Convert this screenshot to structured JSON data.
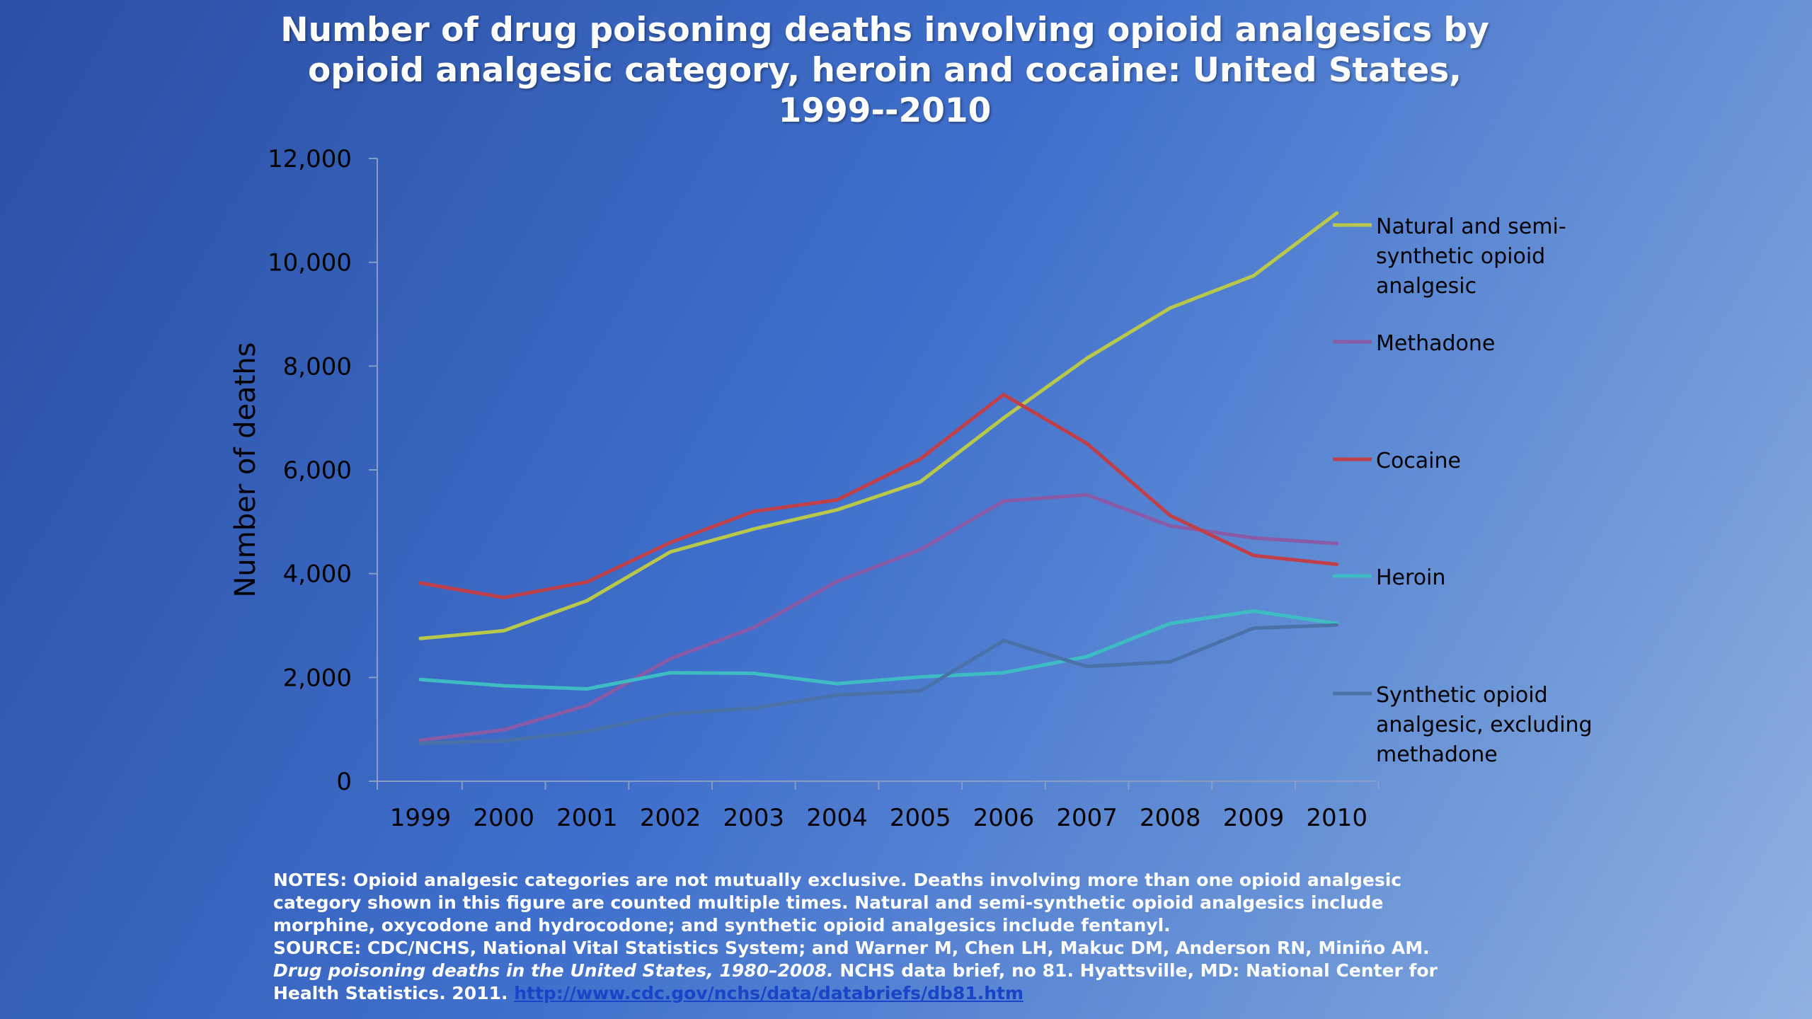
{
  "title_lines": [
    "Number of drug poisoning deaths involving opioid analgesics by",
    "opioid analgesic category, heroin and cocaine: United States,",
    "1999--2010"
  ],
  "notes": {
    "line1": "NOTES: Opioid analgesic categories are not mutually exclusive. Deaths involving more than one opioid analgesic",
    "line2": "category shown in this figure are counted multiple times. Natural and semi-synthetic opioid analgesics include",
    "line3": "morphine, oxycodone and hydrocodone; and synthetic opioid analgesics include fentanyl.",
    "line4": "SOURCE: CDC/NCHS, National Vital Statistics System; and Warner M, Chen LH, Makuc DM, Anderson RN, Miniño AM.",
    "line5_italic": "Drug poisoning deaths in the United States, 1980–2008.",
    "line5_rest": " NCHS data brief, no 81. Hyattsville, MD: National Center for",
    "line6_text": "Health Statistics. 2011. ",
    "line6_link": "http://www.cdc.gov/nchs/data/databriefs/db81.htm"
  },
  "chart_data": {
    "type": "line",
    "ylabel": "Number of deaths",
    "xlabel": "",
    "ylim": [
      0,
      12000
    ],
    "yticks": [
      0,
      2000,
      4000,
      6000,
      8000,
      10000,
      12000
    ],
    "ytick_labels": [
      "0",
      "2,000",
      "4,000",
      "6,000",
      "8,000",
      "10,000",
      "12,000"
    ],
    "categories": [
      "1999",
      "2000",
      "2001",
      "2002",
      "2003",
      "2004",
      "2005",
      "2006",
      "2007",
      "2008",
      "2009",
      "2010"
    ],
    "grid": false,
    "legend_position": "right",
    "series": [
      {
        "name": "Natural and semi-synthetic opioid analgesic",
        "legend_lines": [
          "Natural and semi-",
          "synthetic opioid",
          "analgesic"
        ],
        "color": "#b7c84a",
        "values": [
          2750,
          2900,
          3480,
          4420,
          4860,
          5230,
          5770,
          7000,
          8150,
          9120,
          9740,
          10950
        ]
      },
      {
        "name": "Methadone",
        "legend_lines": [
          "Methadone"
        ],
        "color": "#8b5aa6",
        "values": [
          790,
          990,
          1460,
          2360,
          2960,
          3850,
          4460,
          5400,
          5520,
          4920,
          4690,
          4580
        ]
      },
      {
        "name": "Cocaine",
        "legend_lines": [
          "Cocaine"
        ],
        "color": "#c0404a",
        "values": [
          3820,
          3540,
          3840,
          4600,
          5200,
          5420,
          6210,
          7450,
          6510,
          5120,
          4350,
          4180
        ]
      },
      {
        "name": "Heroin",
        "legend_lines": [
          "Heroin"
        ],
        "color": "#3dbcc4",
        "values": [
          1960,
          1840,
          1780,
          2090,
          2080,
          1880,
          2010,
          2090,
          2400,
          3040,
          3280,
          3040
        ]
      },
      {
        "name": "Synthetic opioid analgesic, excluding methadone",
        "legend_lines": [
          "Synthetic opioid",
          "analgesic, excluding",
          "methadone"
        ],
        "color": "#4a72a8",
        "values": [
          730,
          780,
          960,
          1300,
          1410,
          1660,
          1740,
          2710,
          2210,
          2300,
          2950,
          3010
        ]
      }
    ]
  }
}
